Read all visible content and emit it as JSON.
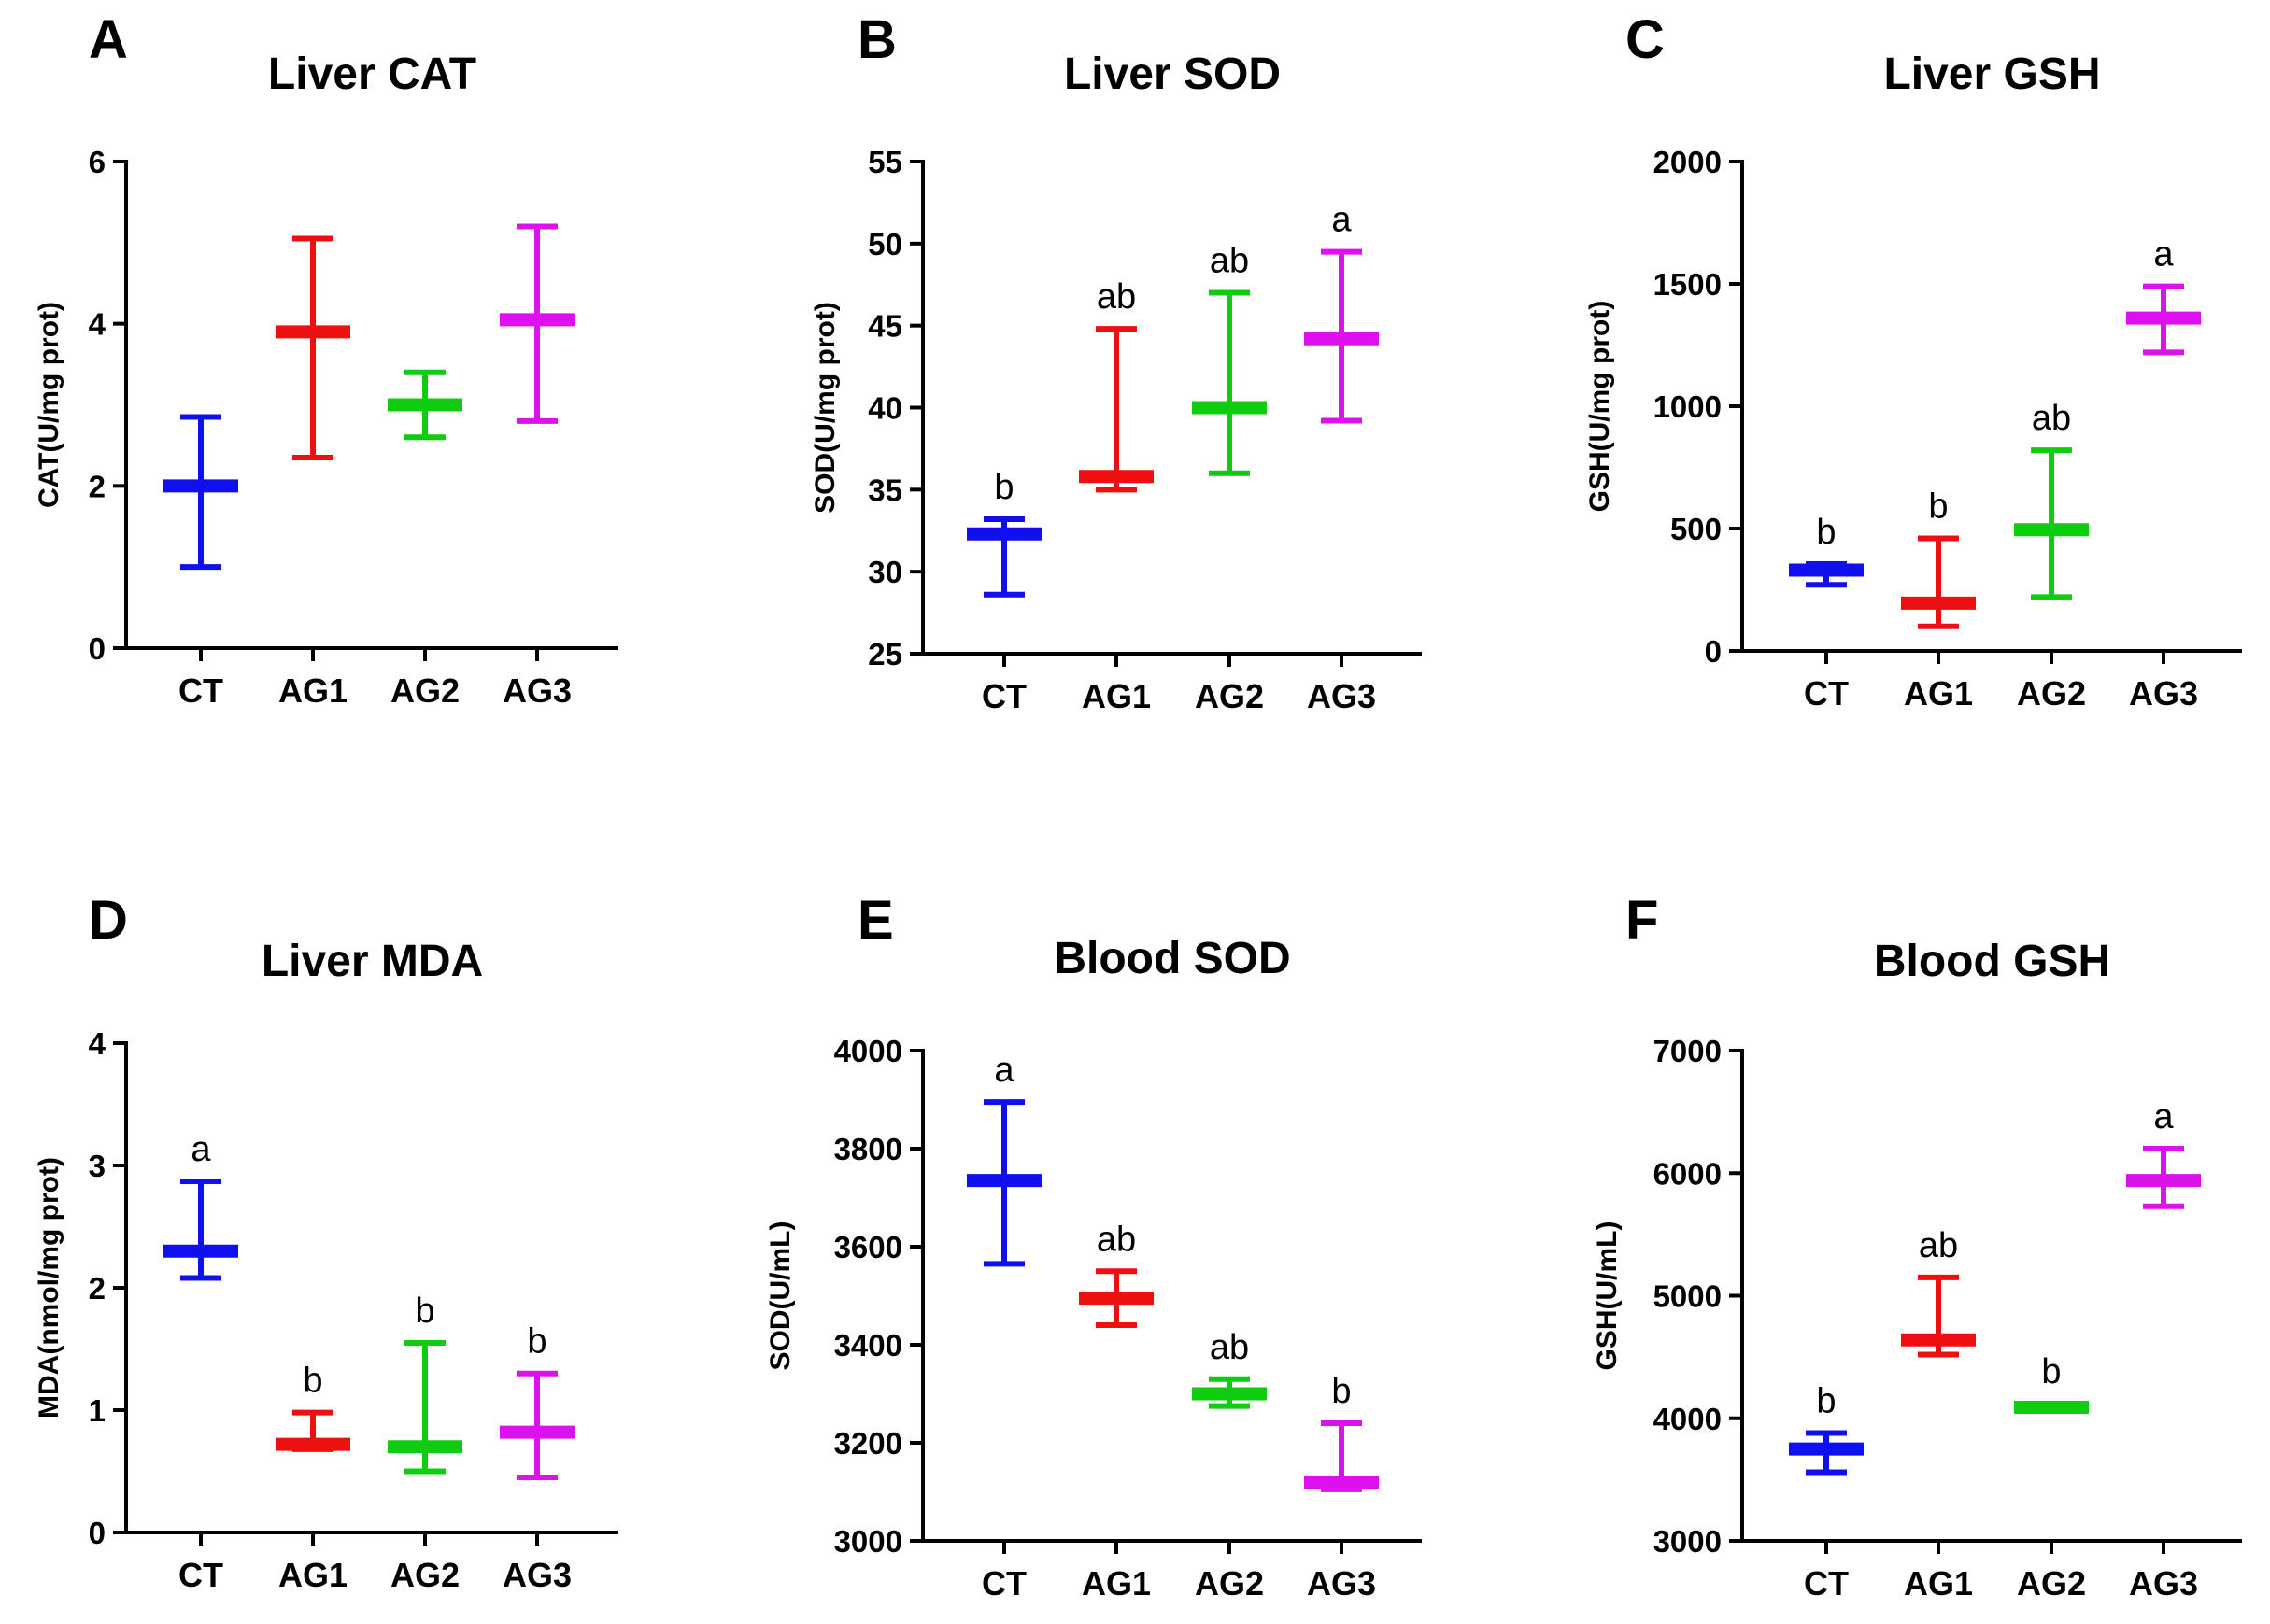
{
  "chart_data": [
    {
      "panel": "A",
      "type": "error-bar",
      "title": "Liver CAT",
      "xlabel": "",
      "ylabel": "CAT(U/mg prot)",
      "ylim": [
        0,
        6
      ],
      "yticks": [
        0,
        2,
        4,
        6
      ],
      "categories": [
        "CT",
        "AG1",
        "AG2",
        "AG3"
      ],
      "series": [
        {
          "group": "CT",
          "color": "#1010ee",
          "mean": 2.0,
          "low": 1.0,
          "high": 2.85,
          "label": ""
        },
        {
          "group": "AG1",
          "color": "#ee1010",
          "mean": 3.9,
          "low": 2.35,
          "high": 5.05,
          "label": ""
        },
        {
          "group": "AG2",
          "color": "#10cc10",
          "mean": 3.0,
          "low": 2.6,
          "high": 3.4,
          "label": ""
        },
        {
          "group": "AG3",
          "color": "#dd10ee",
          "mean": 4.05,
          "low": 2.8,
          "high": 5.2,
          "label": ""
        }
      ]
    },
    {
      "panel": "B",
      "type": "error-bar",
      "title": "Liver SOD",
      "xlabel": "",
      "ylabel": "SOD(U/mg prot)",
      "ylim": [
        25,
        55
      ],
      "yticks": [
        25,
        30,
        35,
        40,
        45,
        50,
        55
      ],
      "categories": [
        "CT",
        "AG1",
        "AG2",
        "AG3"
      ],
      "series": [
        {
          "group": "CT",
          "color": "#1010ee",
          "mean": 32.3,
          "low": 28.6,
          "high": 33.2,
          "label": "b"
        },
        {
          "group": "AG1",
          "color": "#ee1010",
          "mean": 35.8,
          "low": 35.0,
          "high": 44.8,
          "label": "ab"
        },
        {
          "group": "AG2",
          "color": "#10cc10",
          "mean": 40.0,
          "low": 36.0,
          "high": 47.0,
          "label": "ab"
        },
        {
          "group": "AG3",
          "color": "#dd10ee",
          "mean": 44.2,
          "low": 39.2,
          "high": 49.5,
          "label": "a"
        }
      ]
    },
    {
      "panel": "C",
      "type": "error-bar",
      "title": "Liver GSH",
      "xlabel": "",
      "ylabel": "GSH(U/mg prot)",
      "ylim": [
        0,
        2000
      ],
      "yticks": [
        0,
        500,
        1000,
        1500,
        2000
      ],
      "categories": [
        "CT",
        "AG1",
        "AG2",
        "AG3"
      ],
      "series": [
        {
          "group": "CT",
          "color": "#1010ee",
          "mean": 330,
          "low": 270,
          "high": 355,
          "label": "b"
        },
        {
          "group": "AG1",
          "color": "#ee1010",
          "mean": 195,
          "low": 100,
          "high": 460,
          "label": "b"
        },
        {
          "group": "AG2",
          "color": "#10cc10",
          "mean": 495,
          "low": 220,
          "high": 820,
          "label": "ab"
        },
        {
          "group": "AG3",
          "color": "#dd10ee",
          "mean": 1360,
          "low": 1220,
          "high": 1490,
          "label": "a"
        }
      ]
    },
    {
      "panel": "D",
      "type": "error-bar",
      "title": "Liver MDA",
      "xlabel": "",
      "ylabel": "MDA(nmol/mg prot)",
      "ylim": [
        0,
        4
      ],
      "yticks": [
        0,
        1,
        2,
        3,
        4
      ],
      "categories": [
        "CT",
        "AG1",
        "AG2",
        "AG3"
      ],
      "series": [
        {
          "group": "CT",
          "color": "#1010ee",
          "mean": 2.3,
          "low": 2.08,
          "high": 2.87,
          "label": "a"
        },
        {
          "group": "AG1",
          "color": "#ee1010",
          "mean": 0.72,
          "low": 0.68,
          "high": 0.98,
          "label": "b"
        },
        {
          "group": "AG2",
          "color": "#10cc10",
          "mean": 0.7,
          "low": 0.5,
          "high": 1.55,
          "label": "b"
        },
        {
          "group": "AG3",
          "color": "#dd10ee",
          "mean": 0.82,
          "low": 0.45,
          "high": 1.3,
          "label": "b"
        }
      ]
    },
    {
      "panel": "E",
      "type": "error-bar",
      "title": "Blood SOD",
      "xlabel": "",
      "ylabel": "SOD(U/mL)",
      "ylim": [
        3000,
        4000
      ],
      "yticks": [
        3000,
        3200,
        3400,
        3600,
        3800,
        4000
      ],
      "categories": [
        "CT",
        "AG1",
        "AG2",
        "AG3"
      ],
      "series": [
        {
          "group": "CT",
          "color": "#1010ee",
          "mean": 3735,
          "low": 3565,
          "high": 3895,
          "label": "a"
        },
        {
          "group": "AG1",
          "color": "#ee1010",
          "mean": 3495,
          "low": 3440,
          "high": 3550,
          "label": "ab"
        },
        {
          "group": "AG2",
          "color": "#10cc10",
          "mean": 3300,
          "low": 3275,
          "high": 3330,
          "label": "ab"
        },
        {
          "group": "AG3",
          "color": "#dd10ee",
          "mean": 3120,
          "low": 3105,
          "high": 3240,
          "label": "b"
        }
      ]
    },
    {
      "panel": "F",
      "type": "error-bar",
      "title": "Blood GSH",
      "xlabel": "",
      "ylabel": "GSH(U/mL)",
      "ylim": [
        3000,
        7000
      ],
      "yticks": [
        3000,
        4000,
        5000,
        6000,
        7000
      ],
      "categories": [
        "CT",
        "AG1",
        "AG2",
        "AG3"
      ],
      "series": [
        {
          "group": "CT",
          "color": "#1010ee",
          "mean": 3750,
          "low": 3560,
          "high": 3880,
          "label": "b"
        },
        {
          "group": "AG1",
          "color": "#ee1010",
          "mean": 4640,
          "low": 4520,
          "high": 5150,
          "label": "ab"
        },
        {
          "group": "AG2",
          "color": "#10cc10",
          "mean": 4090,
          "low": 4060,
          "high": 4120,
          "label": "b"
        },
        {
          "group": "AG3",
          "color": "#dd10ee",
          "mean": 5940,
          "low": 5730,
          "high": 6200,
          "label": "a"
        }
      ]
    }
  ]
}
